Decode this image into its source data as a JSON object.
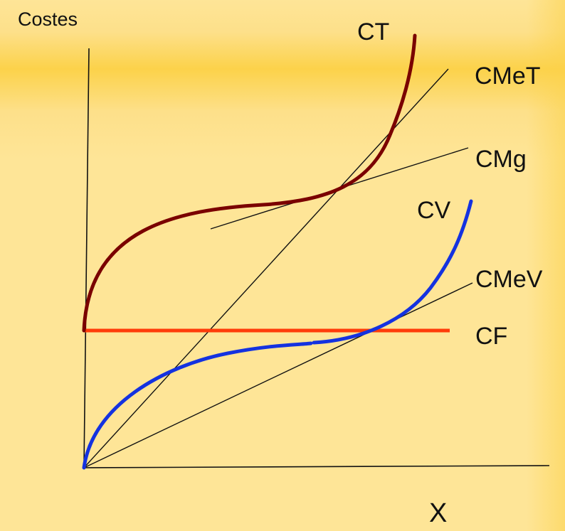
{
  "axes": {
    "y_label": "Costes",
    "x_label": "X"
  },
  "curves": {
    "ct": {
      "label": "CT",
      "color": "#7a0000"
    },
    "cmet": {
      "label": "CMeT",
      "color": "#111111"
    },
    "cmg": {
      "label": "CMg",
      "color": "#111111"
    },
    "cv": {
      "label": "CV",
      "color": "#1432e0"
    },
    "cmev": {
      "label": "CMeV",
      "color": "#111111"
    },
    "cf": {
      "label": "CF",
      "color": "#ff3c0a"
    }
  },
  "colors": {
    "background": "#fee597",
    "band": "#fcd24a"
  }
}
